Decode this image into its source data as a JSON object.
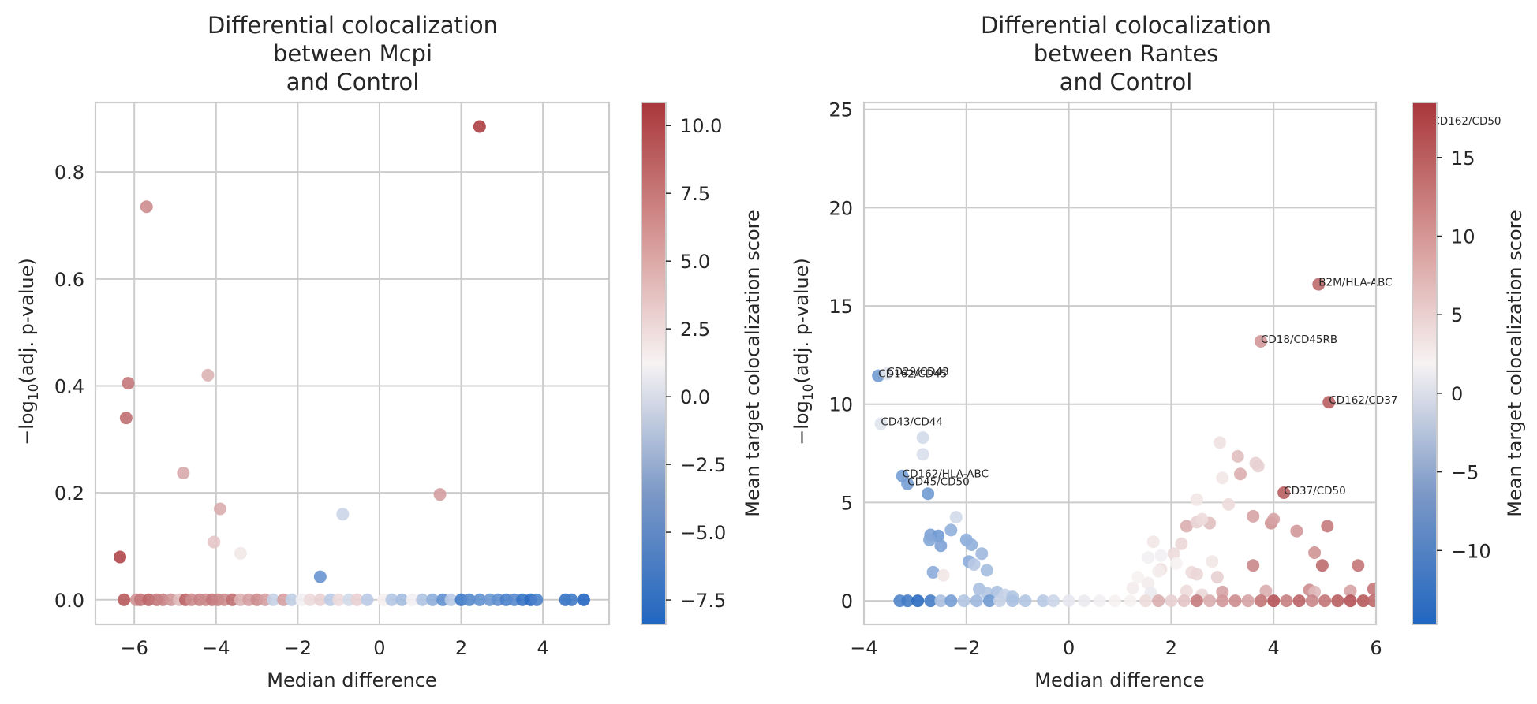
{
  "chart_data": [
    {
      "type": "scatter",
      "title": "Differential colocalization\nbetween Mcpi\nand Control",
      "title_lines": [
        "Differential colocalization",
        "between Mcpi",
        "and Control"
      ],
      "xlabel": "Median difference",
      "ylabel": "−log10(adj. p-value)",
      "ylabel_parts": {
        "prefix": "−log",
        "sub": "10",
        "suffix": "(adj. p-value)"
      },
      "xlim": [
        -6.95,
        5.62
      ],
      "ylim": [
        -0.046,
        0.93
      ],
      "xticks": [
        -6,
        -4,
        -2,
        0,
        2,
        4
      ],
      "xtick_labels": [
        "−6",
        "−4",
        "−2",
        "0",
        "2",
        "4"
      ],
      "yticks": [
        0.0,
        0.2,
        0.4,
        0.6,
        0.8
      ],
      "ytick_labels": [
        "0.0",
        "0.2",
        "0.4",
        "0.6",
        "0.8"
      ],
      "grid": true,
      "colorbar": {
        "label": "Mean target colocalization score",
        "vmin": -8.4,
        "vmax": 10.85,
        "ticks": [
          -7.5,
          -5.0,
          -2.5,
          0.0,
          2.5,
          5.0,
          7.5,
          10.0
        ],
        "tick_labels": [
          "−7.5",
          "−5.0",
          "−2.5",
          "0.0",
          "2.5",
          "5.0",
          "7.5",
          "10.0"
        ],
        "cmap": [
          "#2166c0",
          "#f7f3f3",
          "#a9373b"
        ]
      },
      "points": [
        {
          "x": 2.45,
          "y": 0.885,
          "c": 10.5
        },
        {
          "x": -5.7,
          "y": 0.735,
          "c": 6.5
        },
        {
          "x": -6.15,
          "y": 0.405,
          "c": 7.5
        },
        {
          "x": -4.2,
          "y": 0.42,
          "c": 4.5
        },
        {
          "x": -6.2,
          "y": 0.34,
          "c": 8.0
        },
        {
          "x": -4.8,
          "y": 0.237,
          "c": 5.0
        },
        {
          "x": 1.48,
          "y": 0.197,
          "c": 5.5
        },
        {
          "x": -3.9,
          "y": 0.17,
          "c": 4.8
        },
        {
          "x": -0.9,
          "y": 0.16,
          "c": -0.8
        },
        {
          "x": -4.05,
          "y": 0.108,
          "c": 3.5
        },
        {
          "x": -3.4,
          "y": 0.087,
          "c": 1.8
        },
        {
          "x": -6.35,
          "y": 0.08,
          "c": 10.0
        },
        {
          "x": -1.45,
          "y": 0.043,
          "c": -5.2
        },
        {
          "x": -6.25,
          "y": 0.0,
          "c": 9.0
        },
        {
          "x": -5.95,
          "y": 0.0,
          "c": 6.0
        },
        {
          "x": -5.85,
          "y": 0.0,
          "c": 7.5
        },
        {
          "x": -5.65,
          "y": 0.0,
          "c": 8.5
        },
        {
          "x": -5.45,
          "y": 0.0,
          "c": 7.5
        },
        {
          "x": -5.3,
          "y": 0.0,
          "c": 7.0
        },
        {
          "x": -5.1,
          "y": 0.0,
          "c": 6.0
        },
        {
          "x": -4.9,
          "y": 0.0,
          "c": 4.0
        },
        {
          "x": -4.75,
          "y": 0.0,
          "c": 8.5
        },
        {
          "x": -4.6,
          "y": 0.0,
          "c": 6.5
        },
        {
          "x": -4.4,
          "y": 0.0,
          "c": 7.0
        },
        {
          "x": -4.25,
          "y": 0.0,
          "c": 6.5
        },
        {
          "x": -4.1,
          "y": 0.0,
          "c": 7.5
        },
        {
          "x": -3.95,
          "y": 0.0,
          "c": 7.0
        },
        {
          "x": -3.8,
          "y": 0.0,
          "c": 6.5
        },
        {
          "x": -3.6,
          "y": 0.0,
          "c": 8.0
        },
        {
          "x": -3.4,
          "y": 0.0,
          "c": 4.5
        },
        {
          "x": -3.2,
          "y": 0.0,
          "c": 5.5
        },
        {
          "x": -3.0,
          "y": 0.0,
          "c": 6.5
        },
        {
          "x": -2.8,
          "y": 0.0,
          "c": 5.5
        },
        {
          "x": -2.6,
          "y": 0.0,
          "c": -1.0
        },
        {
          "x": -2.35,
          "y": 0.0,
          "c": 5.5
        },
        {
          "x": -2.15,
          "y": 0.0,
          "c": -1.2
        },
        {
          "x": -1.9,
          "y": 0.0,
          "c": 1.0
        },
        {
          "x": -1.7,
          "y": 0.0,
          "c": 2.5
        },
        {
          "x": -1.45,
          "y": 0.0,
          "c": 3.0
        },
        {
          "x": -1.2,
          "y": 0.0,
          "c": -1.5
        },
        {
          "x": -1.0,
          "y": 0.0,
          "c": 2.5
        },
        {
          "x": -0.75,
          "y": 0.0,
          "c": -0.5
        },
        {
          "x": -0.55,
          "y": 0.0,
          "c": 3.0
        },
        {
          "x": -0.3,
          "y": 0.0,
          "c": -1.5
        },
        {
          "x": 0.1,
          "y": 0.0,
          "c": 1.5
        },
        {
          "x": 0.3,
          "y": 0.0,
          "c": -1.8
        },
        {
          "x": 0.55,
          "y": 0.0,
          "c": -2.5
        },
        {
          "x": 0.8,
          "y": 0.0,
          "c": 1.0
        },
        {
          "x": 1.05,
          "y": 0.0,
          "c": -2.0
        },
        {
          "x": 1.3,
          "y": 0.0,
          "c": -3.5
        },
        {
          "x": 1.55,
          "y": 0.0,
          "c": -5.5
        },
        {
          "x": 1.75,
          "y": 0.0,
          "c": -1.5
        },
        {
          "x": 2.0,
          "y": 0.0,
          "c": -7.0
        },
        {
          "x": 2.2,
          "y": 0.0,
          "c": -6.0
        },
        {
          "x": 2.45,
          "y": 0.0,
          "c": -5.5
        },
        {
          "x": 2.7,
          "y": 0.0,
          "c": -5.0
        },
        {
          "x": 2.9,
          "y": 0.0,
          "c": -5.5
        },
        {
          "x": 3.1,
          "y": 0.0,
          "c": -6.5
        },
        {
          "x": 3.3,
          "y": 0.0,
          "c": -6.0
        },
        {
          "x": 3.5,
          "y": 0.0,
          "c": -7.5
        },
        {
          "x": 3.7,
          "y": 0.0,
          "c": -8.0
        },
        {
          "x": 3.85,
          "y": 0.0,
          "c": -6.5
        },
        {
          "x": 4.55,
          "y": 0.0,
          "c": -7.5
        },
        {
          "x": 4.7,
          "y": 0.0,
          "c": -7.0
        },
        {
          "x": 5.0,
          "y": 0.0,
          "c": -8.3
        }
      ],
      "annotations": []
    },
    {
      "type": "scatter",
      "title": "Differential colocalization\nbetween Rantes\nand Control",
      "title_lines": [
        "Differential colocalization",
        "between Rantes",
        "and Control"
      ],
      "xlabel": "Median difference",
      "ylabel": "−log10(adj. p-value)",
      "ylabel_parts": {
        "prefix": "−log",
        "sub": "10",
        "suffix": "(adj. p-value)"
      },
      "xlim": [
        -4,
        6
      ],
      "ylim": [
        -1.2,
        25.35
      ],
      "xticks": [
        -4,
        -2,
        0,
        2,
        4,
        6
      ],
      "xtick_labels": [
        "−4",
        "−2",
        "0",
        "2",
        "4",
        "6"
      ],
      "yticks": [
        0,
        5,
        10,
        15,
        20,
        25
      ],
      "ytick_labels": [
        "0",
        "5",
        "10",
        "15",
        "20",
        "25"
      ],
      "grid": true,
      "colorbar": {
        "label": "Mean target colocalization score",
        "vmin": -14.7,
        "vmax": 18.5,
        "ticks": [
          -10,
          -5,
          0,
          5,
          10,
          15
        ],
        "tick_labels": [
          "−10",
          "−5",
          "0",
          "5",
          "10",
          "15"
        ],
        "cmap": [
          "#2166c0",
          "#f7f3f3",
          "#a9373b"
        ]
      },
      "points": [
        {
          "x": 4.88,
          "y": 16.1,
          "c": 14.0
        },
        {
          "x": 3.75,
          "y": 13.2,
          "c": 10.0
        },
        {
          "x": 5.08,
          "y": 10.1,
          "c": 15.0
        },
        {
          "x": -3.72,
          "y": 11.45,
          "c": -8.5
        },
        {
          "x": -3.55,
          "y": 11.55,
          "c": 0.0
        },
        {
          "x": -3.67,
          "y": 9.0,
          "c": 0.0
        },
        {
          "x": -2.85,
          "y": 8.3,
          "c": -1.0
        },
        {
          "x": -2.85,
          "y": 7.45,
          "c": -0.5
        },
        {
          "x": -3.25,
          "y": 6.35,
          "c": -8.0
        },
        {
          "x": -3.15,
          "y": 5.95,
          "c": -8.0
        },
        {
          "x": -2.75,
          "y": 5.45,
          "c": -8.5
        },
        {
          "x": 4.2,
          "y": 5.5,
          "c": 15.0
        },
        {
          "x": -2.2,
          "y": 4.25,
          "c": -1.0
        },
        {
          "x": -2.3,
          "y": 3.6,
          "c": -6.0
        },
        {
          "x": -2.7,
          "y": 3.35,
          "c": -7.5
        },
        {
          "x": -2.55,
          "y": 3.3,
          "c": -8.5
        },
        {
          "x": -2.72,
          "y": 3.1,
          "c": -7.0
        },
        {
          "x": -2.5,
          "y": 2.8,
          "c": -7.5
        },
        {
          "x": -2.0,
          "y": 3.1,
          "c": -6.5
        },
        {
          "x": -1.9,
          "y": 2.85,
          "c": -6.0
        },
        {
          "x": -1.7,
          "y": 2.4,
          "c": -5.0
        },
        {
          "x": -1.95,
          "y": 2.0,
          "c": -6.5
        },
        {
          "x": -1.85,
          "y": 1.85,
          "c": -3.0
        },
        {
          "x": -1.6,
          "y": 1.55,
          "c": -4.5
        },
        {
          "x": -2.65,
          "y": 1.45,
          "c": -6.5
        },
        {
          "x": -2.45,
          "y": 1.3,
          "c": 3.0
        },
        {
          "x": -1.75,
          "y": 0.6,
          "c": -4.0
        },
        {
          "x": -1.6,
          "y": 0.4,
          "c": -3.5
        },
        {
          "x": -1.4,
          "y": 0.45,
          "c": -4.0
        },
        {
          "x": -1.25,
          "y": 0.3,
          "c": -2.0
        },
        {
          "x": -1.1,
          "y": 0.2,
          "c": -3.5
        },
        {
          "x": 2.95,
          "y": 8.05,
          "c": 3.5
        },
        {
          "x": 3.3,
          "y": 7.35,
          "c": 6.5
        },
        {
          "x": 3.65,
          "y": 7.0,
          "c": 5.0
        },
        {
          "x": 3.7,
          "y": 6.85,
          "c": 5.0
        },
        {
          "x": 3.0,
          "y": 6.25,
          "c": 3.0
        },
        {
          "x": 3.35,
          "y": 6.45,
          "c": 8.0
        },
        {
          "x": 3.12,
          "y": 4.9,
          "c": 4.0
        },
        {
          "x": 2.5,
          "y": 5.15,
          "c": 3.0
        },
        {
          "x": 2.3,
          "y": 3.8,
          "c": 8.0
        },
        {
          "x": 2.5,
          "y": 4.0,
          "c": 5.0
        },
        {
          "x": 2.75,
          "y": 3.95,
          "c": 6.5
        },
        {
          "x": 2.6,
          "y": 4.15,
          "c": 4.0
        },
        {
          "x": 2.2,
          "y": 2.9,
          "c": 4.5
        },
        {
          "x": 3.6,
          "y": 4.3,
          "c": 9.0
        },
        {
          "x": 3.95,
          "y": 3.95,
          "c": 10.5
        },
        {
          "x": 4.0,
          "y": 4.15,
          "c": 9.0
        },
        {
          "x": 4.45,
          "y": 3.55,
          "c": 10.0
        },
        {
          "x": 5.05,
          "y": 3.8,
          "c": 12.5
        },
        {
          "x": 3.6,
          "y": 1.8,
          "c": 11.5
        },
        {
          "x": 4.8,
          "y": 2.45,
          "c": 10.5
        },
        {
          "x": 4.95,
          "y": 1.8,
          "c": 14.0
        },
        {
          "x": 5.65,
          "y": 1.8,
          "c": 13.0
        },
        {
          "x": 1.65,
          "y": 3.0,
          "c": 3.0
        },
        {
          "x": 1.8,
          "y": 2.3,
          "c": 1.5
        },
        {
          "x": 1.55,
          "y": 2.2,
          "c": 1.5
        },
        {
          "x": 2.05,
          "y": 2.4,
          "c": 4.0
        },
        {
          "x": 2.1,
          "y": 1.9,
          "c": 2.0
        },
        {
          "x": 1.8,
          "y": 1.6,
          "c": 3.5
        },
        {
          "x": 1.75,
          "y": 1.5,
          "c": 2.5
        },
        {
          "x": 2.8,
          "y": 2.0,
          "c": 3.0
        },
        {
          "x": 2.4,
          "y": 1.45,
          "c": 4.0
        },
        {
          "x": 2.5,
          "y": 1.35,
          "c": 4.5
        },
        {
          "x": 2.9,
          "y": 1.2,
          "c": 5.0
        },
        {
          "x": 1.35,
          "y": 1.2,
          "c": 2.0
        },
        {
          "x": 1.55,
          "y": 0.9,
          "c": 2.5
        },
        {
          "x": 1.25,
          "y": 0.65,
          "c": 2.5
        },
        {
          "x": 1.6,
          "y": 0.4,
          "c": 1.0
        },
        {
          "x": 2.3,
          "y": 0.5,
          "c": 4.0
        },
        {
          "x": 2.6,
          "y": 0.3,
          "c": 4.5
        },
        {
          "x": 3.0,
          "y": 0.45,
          "c": 9.0
        },
        {
          "x": 3.85,
          "y": 0.5,
          "c": 8.0
        },
        {
          "x": 4.7,
          "y": 0.55,
          "c": 11.0
        },
        {
          "x": 4.8,
          "y": 0.45,
          "c": 7.0
        },
        {
          "x": 5.5,
          "y": 0.5,
          "c": 9.0
        },
        {
          "x": 5.95,
          "y": 0.6,
          "c": 13.0
        },
        {
          "x": -3.3,
          "y": 0.0,
          "c": -11.0
        },
        {
          "x": -3.15,
          "y": 0.0,
          "c": -12.0
        },
        {
          "x": -2.95,
          "y": 0.0,
          "c": -14.0
        },
        {
          "x": -2.7,
          "y": 0.0,
          "c": -12.0
        },
        {
          "x": -2.5,
          "y": 0.0,
          "c": -4.0
        },
        {
          "x": -2.3,
          "y": 0.0,
          "c": -8.0
        },
        {
          "x": -2.05,
          "y": 0.0,
          "c": -3.5
        },
        {
          "x": -1.8,
          "y": 0.0,
          "c": -5.0
        },
        {
          "x": -1.55,
          "y": 0.0,
          "c": -8.5
        },
        {
          "x": -1.35,
          "y": 0.0,
          "c": -2.0
        },
        {
          "x": -1.1,
          "y": 0.0,
          "c": -4.0
        },
        {
          "x": -0.85,
          "y": 0.0,
          "c": -3.5
        },
        {
          "x": -0.5,
          "y": 0.0,
          "c": -3.0
        },
        {
          "x": -0.3,
          "y": 0.0,
          "c": -1.5
        },
        {
          "x": 0.0,
          "y": 0.0,
          "c": 0.5
        },
        {
          "x": 0.3,
          "y": 0.0,
          "c": 1.0
        },
        {
          "x": 0.6,
          "y": 0.0,
          "c": 1.5
        },
        {
          "x": 0.9,
          "y": 0.0,
          "c": 2.0
        },
        {
          "x": 1.2,
          "y": 0.0,
          "c": 2.0
        },
        {
          "x": 1.5,
          "y": 0.0,
          "c": 4.0
        },
        {
          "x": 1.75,
          "y": 0.0,
          "c": 8.0
        },
        {
          "x": 2.0,
          "y": 0.0,
          "c": 5.0
        },
        {
          "x": 2.25,
          "y": 0.0,
          "c": 6.0
        },
        {
          "x": 2.5,
          "y": 0.0,
          "c": 12.5
        },
        {
          "x": 2.75,
          "y": 0.0,
          "c": 8.0
        },
        {
          "x": 3.0,
          "y": 0.0,
          "c": 10.0
        },
        {
          "x": 3.25,
          "y": 0.0,
          "c": 11.0
        },
        {
          "x": 3.5,
          "y": 0.0,
          "c": 9.0
        },
        {
          "x": 3.75,
          "y": 0.0,
          "c": 13.0
        },
        {
          "x": 4.0,
          "y": 0.0,
          "c": 16.0
        },
        {
          "x": 4.25,
          "y": 0.0,
          "c": 12.0
        },
        {
          "x": 4.5,
          "y": 0.0,
          "c": 14.5
        },
        {
          "x": 4.75,
          "y": 0.0,
          "c": 11.5
        },
        {
          "x": 5.0,
          "y": 0.0,
          "c": 13.0
        },
        {
          "x": 5.25,
          "y": 0.0,
          "c": 15.0
        },
        {
          "x": 5.5,
          "y": 0.0,
          "c": 16.0
        },
        {
          "x": 5.75,
          "y": 0.0,
          "c": 15.5
        },
        {
          "x": 5.95,
          "y": 0.0,
          "c": 14.0
        }
      ],
      "annotations": [
        {
          "text": "B2M/HLA-ABC",
          "x": 4.88,
          "y": 16.1
        },
        {
          "text": "CD18/CD45RB",
          "x": 3.75,
          "y": 13.2
        },
        {
          "text": "CD162/CD37",
          "x": 5.08,
          "y": 10.1
        },
        {
          "text": "CD29/CD43",
          "x": -3.55,
          "y": 11.55
        },
        {
          "text": "CD162/CD45",
          "x": -3.72,
          "y": 11.45
        },
        {
          "text": "CD43/CD44",
          "x": -3.67,
          "y": 9.0
        },
        {
          "text": "CD162/HLA-ABC",
          "x": -3.25,
          "y": 6.35
        },
        {
          "text": "CD45/CD50",
          "x": -3.15,
          "y": 5.95
        },
        {
          "text": "CD37/CD50",
          "x": 4.2,
          "y": 5.5
        },
        {
          "text": "CD162/CD50",
          "x": 7.1,
          "y": 24.3
        }
      ]
    }
  ]
}
